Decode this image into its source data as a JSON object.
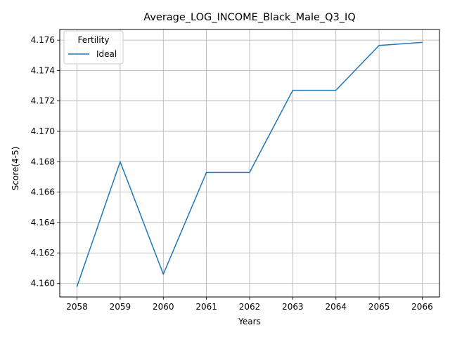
{
  "chart_data": {
    "type": "line",
    "title": "Average_LOG_INCOME_Black_Male_Q3_IQ",
    "xlabel": "Years",
    "ylabel": "Score(4-5)",
    "x": [
      2058,
      2059,
      2060,
      2061,
      2062,
      2063,
      2064,
      2065,
      2066
    ],
    "x_ticks": [
      "2058",
      "2059",
      "2060",
      "2061",
      "2062",
      "2063",
      "2064",
      "2065",
      "2066"
    ],
    "y_ticks": [
      "4.160",
      "4.162",
      "4.164",
      "4.166",
      "4.168",
      "4.170",
      "4.172",
      "4.174",
      "4.176"
    ],
    "xlim": [
      2057.6,
      2066.4
    ],
    "ylim": [
      4.1591,
      4.1767
    ],
    "grid": true,
    "legend": {
      "title": "Fertility",
      "placement": "top-left"
    },
    "series": [
      {
        "name": "Ideal",
        "color": "#1f77b4",
        "values": [
          4.1598,
          4.168,
          4.1606,
          4.1673,
          4.1673,
          4.1727,
          4.1727,
          4.17565,
          4.17585
        ]
      }
    ]
  }
}
